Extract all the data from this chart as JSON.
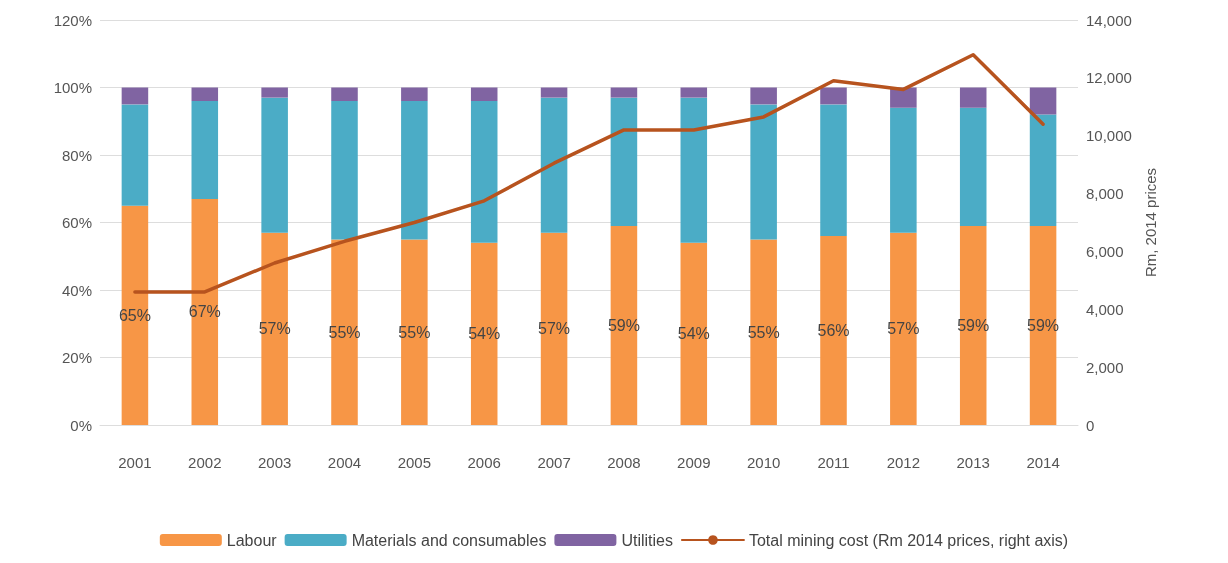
{
  "chart_data": {
    "type": "bar",
    "stacked": true,
    "categories": [
      "2001",
      "2002",
      "2003",
      "2004",
      "2005",
      "2006",
      "2007",
      "2008",
      "2009",
      "2010",
      "2011",
      "2012",
      "2013",
      "2014"
    ],
    "series": [
      {
        "name": "Labour",
        "color": "#f79646",
        "values": [
          65,
          67,
          57,
          55,
          55,
          54,
          57,
          59,
          54,
          55,
          56,
          57,
          59,
          59
        ],
        "value_labels": [
          "65%",
          "67%",
          "57%",
          "55%",
          "55%",
          "54%",
          "57%",
          "59%",
          "54%",
          "55%",
          "56%",
          "57%",
          "59%",
          "59%"
        ]
      },
      {
        "name": "Materials and consumables",
        "color": "#4bacc6",
        "values": [
          30,
          29,
          40,
          41,
          41,
          42,
          40,
          38,
          43,
          40,
          39,
          37,
          35,
          33
        ]
      },
      {
        "name": "Utilities",
        "color": "#8064a2",
        "values": [
          5,
          4,
          3,
          4,
          4,
          4,
          3,
          3,
          3,
          5,
          5,
          6,
          6,
          8
        ]
      },
      {
        "name": "Total mining cost (Rm 2014 prices, right axis)",
        "type": "line",
        "axis": "y2",
        "color": "#b7531e",
        "values": [
          4600,
          4600,
          5600,
          6350,
          7000,
          7750,
          9050,
          10200,
          10200,
          10650,
          11900,
          11600,
          12800,
          10400
        ]
      }
    ],
    "ylim": [
      0,
      120
    ],
    "yticks": [
      {
        "value": 0,
        "label": "0%"
      },
      {
        "value": 20,
        "label": "20%"
      },
      {
        "value": 40,
        "label": "40%"
      },
      {
        "value": 60,
        "label": "60%"
      },
      {
        "value": 80,
        "label": "80%"
      },
      {
        "value": 100,
        "label": "100%"
      },
      {
        "value": 120,
        "label": "120%"
      }
    ],
    "y2lim": [
      0,
      14000
    ],
    "y2ticks": [
      0,
      {
        "value": 2000,
        "label": "2,000"
      },
      {
        "value": 4000,
        "label": "4,000"
      },
      {
        "value": 6000,
        "label": "6,000"
      },
      {
        "value": 8000,
        "label": "8,000"
      },
      {
        "value": 10000,
        "label": "10,000"
      },
      {
        "value": 12000,
        "label": "12,000"
      },
      {
        "value": 14000,
        "label": "14,000"
      }
    ],
    "y2label": "Rm, 2014 prices",
    "grid": "y",
    "legend": "bottom",
    "marker": "none",
    "line_style": "solid"
  }
}
